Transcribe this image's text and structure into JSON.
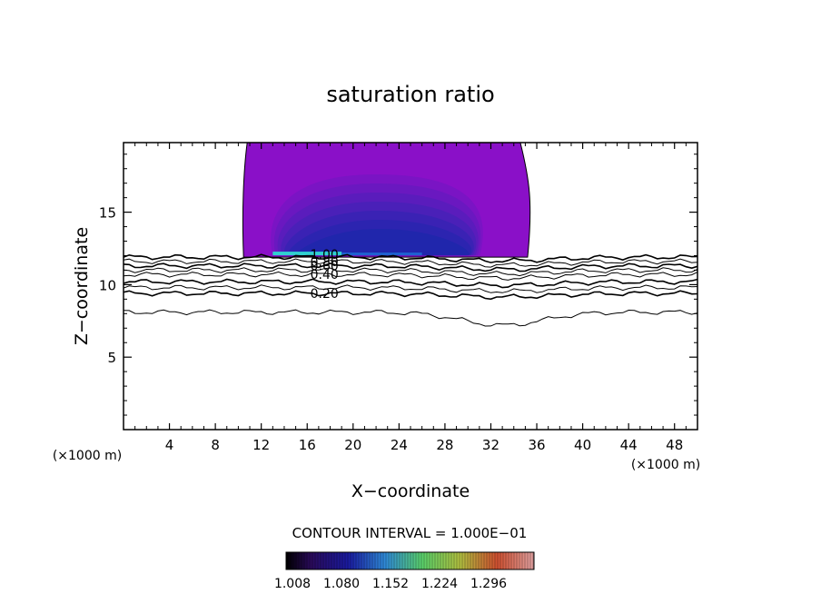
{
  "chart_data": {
    "type": "contour",
    "title": "saturation ratio",
    "xlabel": "X−coordinate",
    "ylabel": "Z−coordinate",
    "x_unit_left": "(×1000 m)",
    "x_unit_right": "(×1000 m)",
    "xlim": [
      0,
      50
    ],
    "ylim": [
      0,
      19.8
    ],
    "x_ticks": [
      "4",
      "8",
      "12",
      "16",
      "20",
      "24",
      "28",
      "32",
      "36",
      "40",
      "44",
      "48"
    ],
    "x_tick_values": [
      4,
      8,
      12,
      16,
      20,
      24,
      28,
      32,
      36,
      40,
      44,
      48
    ],
    "y_ticks": [
      "5",
      "10",
      "15"
    ],
    "y_tick_values": [
      5,
      10,
      15
    ],
    "contour_interval_text": "CONTOUR INTERVAL = 1.000E−01",
    "contour_labels": [
      "1.00",
      "0.80",
      "0.60",
      "0.40",
      "0.20"
    ],
    "contour_label_positions": [
      {
        "label": "1.00",
        "x": 17.5,
        "z": 12.1
      },
      {
        "label": "0.80",
        "x": 17.5,
        "z": 11.6
      },
      {
        "label": "0.60",
        "x": 17.5,
        "z": 11.3
      },
      {
        "label": "0.40",
        "x": 17.5,
        "z": 10.7
      },
      {
        "label": "0.20",
        "x": 17.5,
        "z": 9.4
      }
    ],
    "supersaturated_region": {
      "x_range": [
        10.3,
        35.2
      ],
      "z_range": [
        11.9,
        19.8
      ]
    },
    "colorbar": {
      "tick_labels": [
        "1.008",
        "1.080",
        "1.152",
        "1.224",
        "1.296"
      ],
      "range": [
        1.0,
        1.33
      ]
    }
  }
}
